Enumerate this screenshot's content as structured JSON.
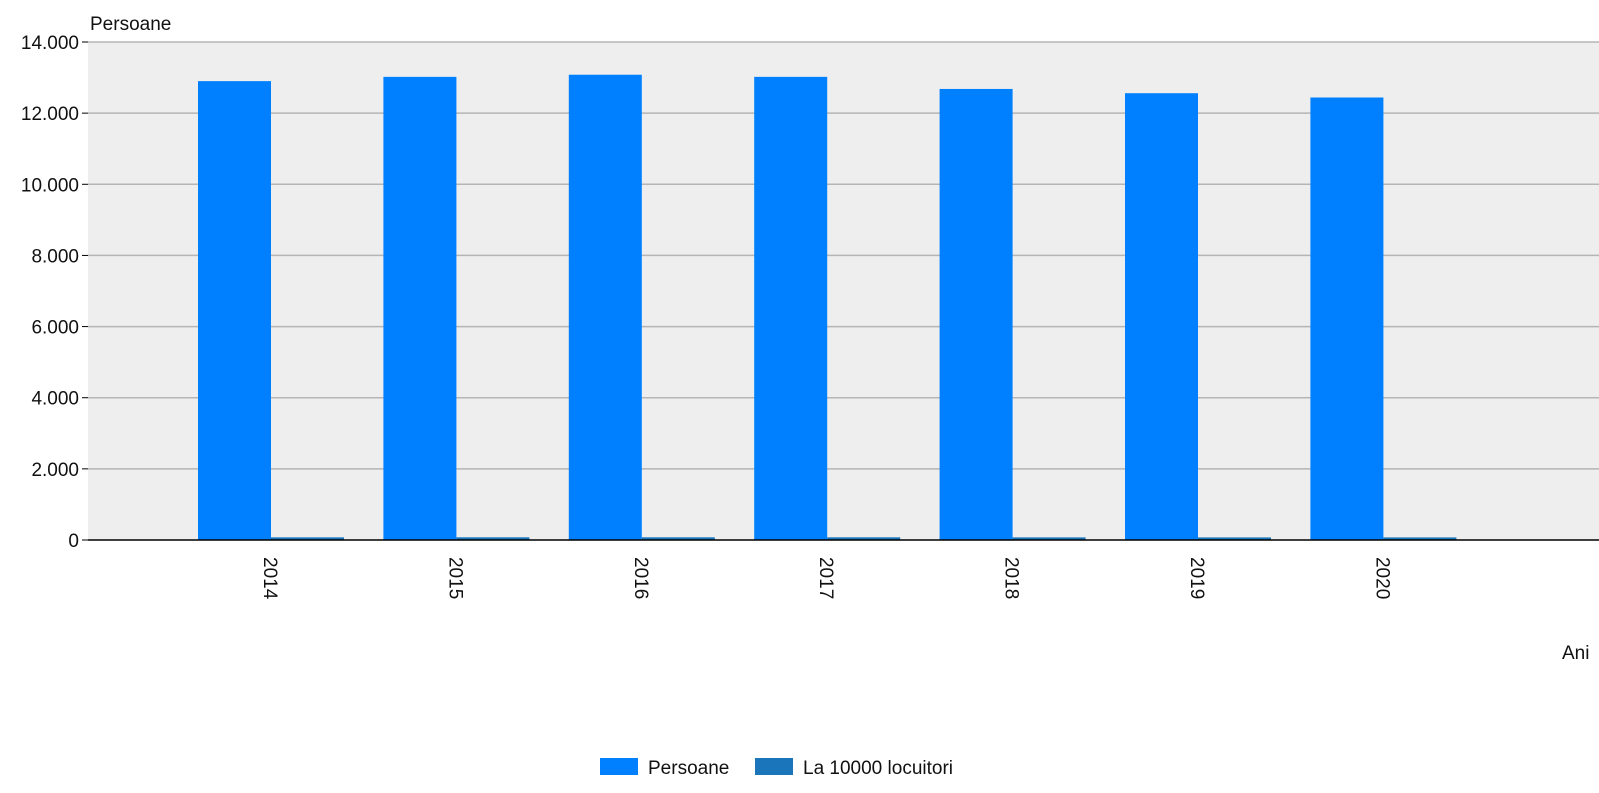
{
  "chart_data": {
    "type": "bar",
    "title": "",
    "ylabel": "Persoane",
    "xlabel": "Ani",
    "ylim": [
      0,
      14000
    ],
    "yticks": [
      0,
      2000,
      4000,
      6000,
      8000,
      10000,
      12000,
      14000
    ],
    "ytick_labels": [
      "0",
      "2.000",
      "4.000",
      "6.000",
      "8.000",
      "10.000",
      "12.000",
      "14.000"
    ],
    "categories": [
      "2014",
      "2015",
      "2016",
      "2017",
      "2018",
      "2019",
      "2020"
    ],
    "x_tick_rotation": "90 degrees clockwise",
    "grid": "horizontal",
    "legend_position": "bottom-center",
    "series": [
      {
        "name": "Persoane",
        "color": "#0080ff",
        "values": [
          12900,
          13020,
          13080,
          13020,
          12680,
          12560,
          12440
        ]
      },
      {
        "name": "La 10000 locuitori",
        "color": "#1a75bb",
        "values": [
          75,
          76,
          76,
          76,
          74,
          73,
          73
        ]
      }
    ],
    "colors": {
      "plot_background": "#eeeeee",
      "gridline": "#b5b5b5",
      "axis": "#000000"
    }
  }
}
